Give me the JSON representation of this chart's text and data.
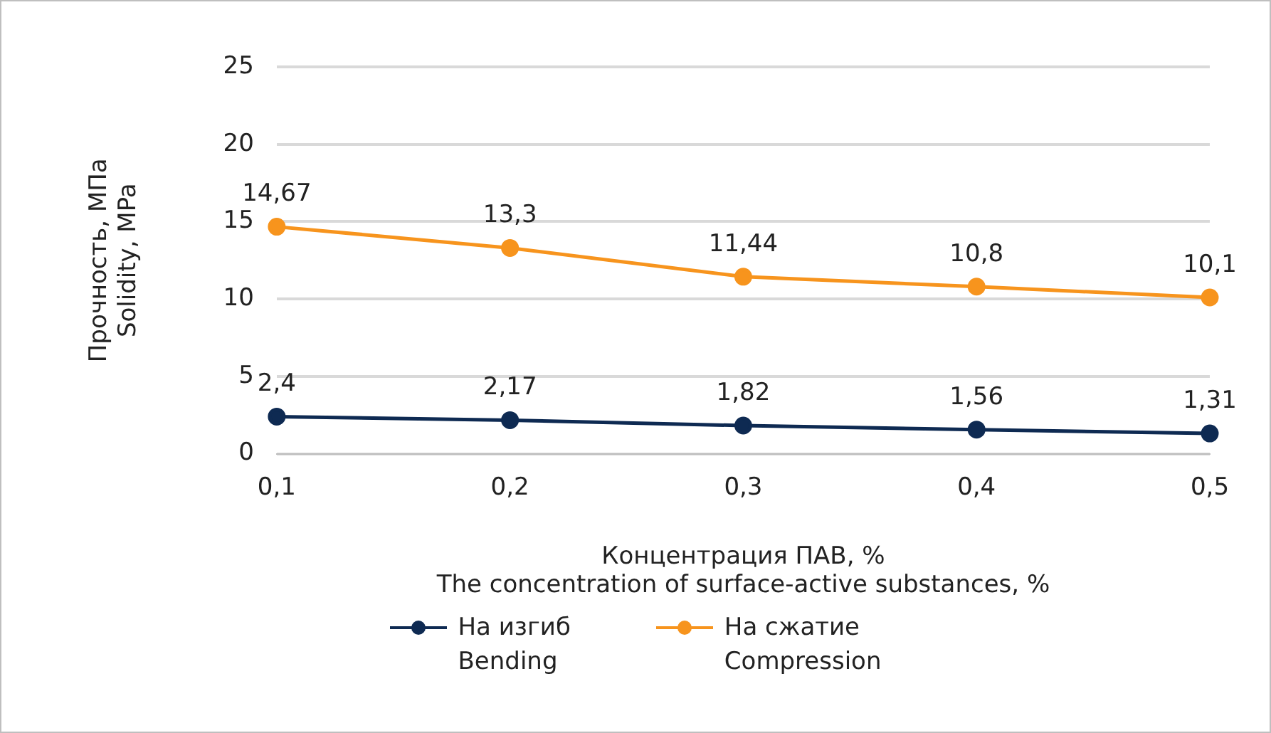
{
  "chart_data": {
    "type": "line",
    "xlabel": "Концентрация ПАВ, %\nThe concentration of surface-active substances, %",
    "ylabel": "Прочность, МПа\nSolidity, MPa",
    "categories": [
      "0,1",
      "0,2",
      "0,3",
      "0,4",
      "0,5"
    ],
    "series": [
      {
        "name": "На изгиб\nBending",
        "color": "#0e2a52",
        "values": [
          2.4,
          2.17,
          1.82,
          1.56,
          1.31
        ],
        "value_labels": [
          "2,4",
          "2,17",
          "1,82",
          "1,56",
          "1,31"
        ]
      },
      {
        "name": "На сжатие\nCompression",
        "color": "#f7941d",
        "values": [
          14.67,
          13.3,
          11.44,
          10.8,
          10.1
        ],
        "value_labels": [
          "14,67",
          "13,3",
          "11,44",
          "10,8",
          "10,1"
        ]
      }
    ],
    "ylim": [
      0,
      25
    ],
    "yticks": [
      0,
      5,
      10,
      15,
      20,
      25
    ],
    "grid": "y",
    "legend": "bottom",
    "marker": "circle",
    "line_style": "solid"
  }
}
